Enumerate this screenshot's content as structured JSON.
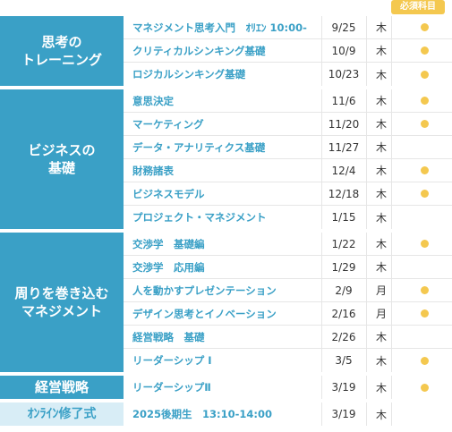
{
  "header": {
    "required_label": "必須科目"
  },
  "groups": [
    {
      "label": "思考の\nトレーニング",
      "rows": [
        {
          "title": "マネジメント思考入門　ｵﾘｴﾝ 10:00-",
          "date": "9/25",
          "day": "木",
          "required": true
        },
        {
          "title": "クリティカルシンキング基礎",
          "date": "10/9",
          "day": "木",
          "required": true
        },
        {
          "title": "ロジカルシンキング基礎",
          "date": "10/23",
          "day": "木",
          "required": true
        }
      ]
    },
    {
      "label": "ビジネスの\n基礎",
      "rows": [
        {
          "title": "意思決定",
          "date": "11/6",
          "day": "木",
          "required": true
        },
        {
          "title": "マーケティング",
          "date": "11/20",
          "day": "木",
          "required": true
        },
        {
          "title": "データ・アナリティクス基礎",
          "date": "11/27",
          "day": "木",
          "required": false
        },
        {
          "title": "財務諸表",
          "date": "12/4",
          "day": "木",
          "required": true
        },
        {
          "title": "ビジネスモデル",
          "date": "12/18",
          "day": "木",
          "required": true
        },
        {
          "title": "プロジェクト・マネジメント",
          "date": "1/15",
          "day": "木",
          "required": false
        }
      ]
    },
    {
      "label": "周りを巻き込む\nマネジメント",
      "rows": [
        {
          "title": "交渉学　基礎編",
          "date": "1/22",
          "day": "木",
          "required": true
        },
        {
          "title": "交渉学　応用編",
          "date": "1/29",
          "day": "木",
          "required": false
        },
        {
          "title": "人を動かすプレゼンテーション",
          "date": "2/9",
          "day": "月",
          "required": true
        },
        {
          "title": "デザイン思考とイノベーション",
          "date": "2/16",
          "day": "月",
          "required": true
        },
        {
          "title": "経営戦略　基礎",
          "date": "2/26",
          "day": "木",
          "required": false
        },
        {
          "title": "リーダーシップ Ⅰ",
          "date": "3/5",
          "day": "木",
          "required": true
        }
      ]
    },
    {
      "label": "経営戦略",
      "rows": [
        {
          "title": "リーダーシップⅡ",
          "date": "3/19",
          "day": "木",
          "required": true
        }
      ]
    },
    {
      "label": "ｵﾝﾗｲﾝ修了式",
      "light": true,
      "rows": [
        {
          "title": "2025後期生　13:10-14:00",
          "date": "3/19",
          "day": "木",
          "required": false
        }
      ]
    }
  ],
  "colors": {
    "accent": "#3aa0c6",
    "required_dot": "#f4c84f",
    "light_band": "#d8edf6"
  }
}
